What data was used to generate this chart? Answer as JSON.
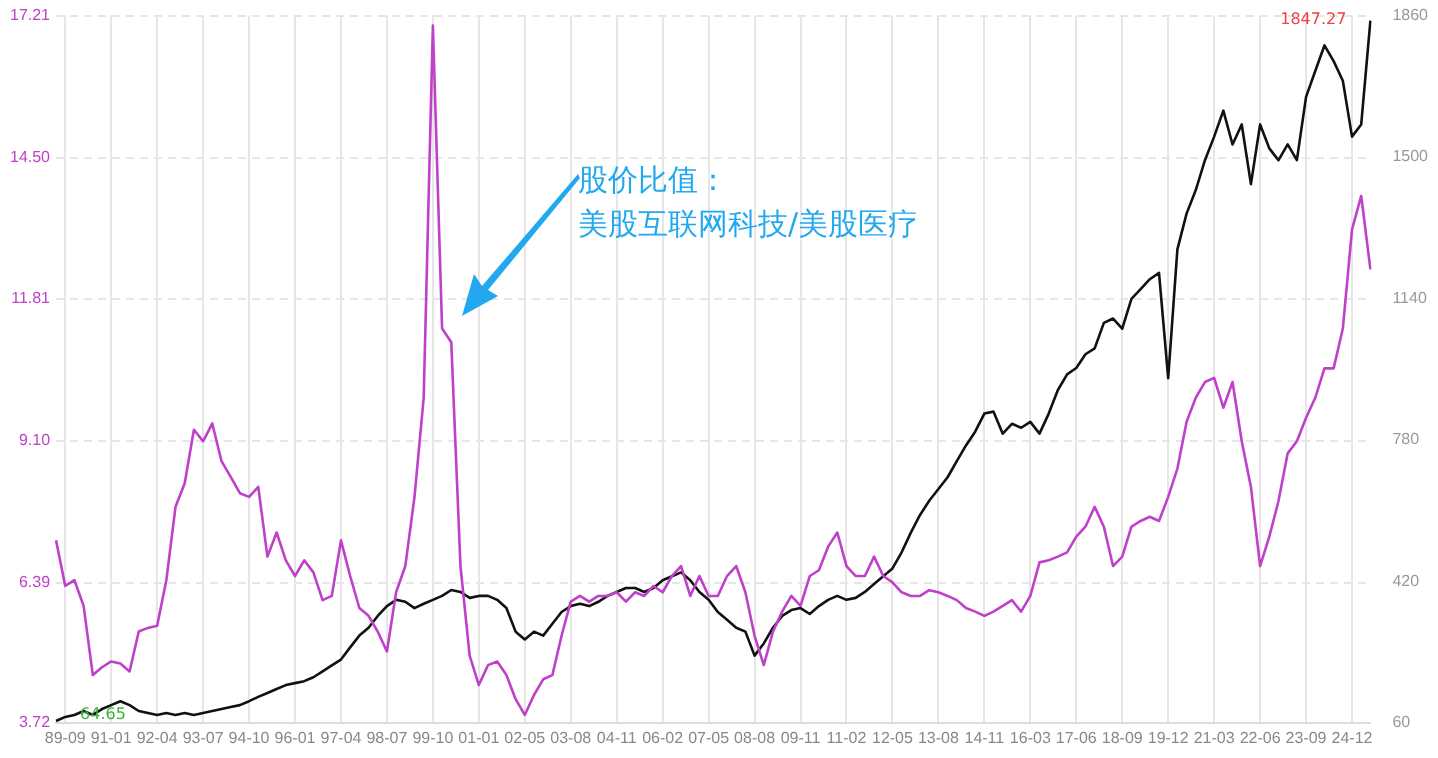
{
  "chart_data": {
    "type": "line",
    "categories": [
      null,
      "89-09",
      null,
      null,
      null,
      null,
      "91-01",
      null,
      null,
      null,
      null,
      "92-04",
      null,
      null,
      null,
      null,
      "93-07",
      null,
      null,
      null,
      null,
      "94-10",
      null,
      null,
      null,
      null,
      "96-01",
      null,
      null,
      null,
      null,
      "97-04",
      null,
      null,
      null,
      null,
      "98-07",
      null,
      null,
      null,
      null,
      "99-10",
      null,
      null,
      null,
      null,
      "01-01",
      null,
      null,
      null,
      null,
      "02-05",
      null,
      null,
      null,
      null,
      "03-08",
      null,
      null,
      null,
      null,
      "04-11",
      null,
      null,
      null,
      null,
      "06-02",
      null,
      null,
      null,
      null,
      "07-05",
      null,
      null,
      null,
      null,
      "08-08",
      null,
      null,
      null,
      null,
      "09-11",
      null,
      null,
      null,
      null,
      "11-02",
      null,
      null,
      null,
      null,
      "12-05",
      null,
      null,
      null,
      null,
      "13-08",
      null,
      null,
      null,
      null,
      "14-11",
      null,
      null,
      null,
      null,
      "16-03",
      null,
      null,
      null,
      null,
      "17-06",
      null,
      null,
      null,
      null,
      "18-09",
      null,
      null,
      null,
      null,
      "19-12",
      null,
      null,
      null,
      null,
      "21-03",
      null,
      null,
      null,
      null,
      "22-06",
      null,
      null,
      null,
      null,
      "23-09",
      null,
      null,
      null,
      null,
      "24-12",
      null,
      null
    ],
    "series": [
      {
        "color": "#bf40c9",
        "values": [
          7.2,
          6.33,
          6.44,
          5.95,
          4.63,
          4.78,
          4.89,
          4.85,
          4.7,
          5.46,
          5.53,
          5.57,
          6.44,
          7.84,
          8.29,
          9.31,
          9.09,
          9.43,
          8.71,
          8.41,
          8.1,
          8.03,
          8.22,
          6.89,
          7.35,
          6.82,
          6.52,
          6.82,
          6.59,
          6.06,
          6.14,
          7.2,
          6.52,
          5.91,
          5.76,
          5.46,
          5.08,
          6.21,
          6.71,
          8.03,
          9.92,
          17.02,
          11.24,
          10.98,
          6.71,
          5.0,
          4.44,
          4.82,
          4.89,
          4.63,
          4.17,
          3.87,
          4.25,
          4.55,
          4.63,
          5.38,
          6.03,
          6.14,
          6.03,
          6.14,
          6.14,
          6.21,
          6.03,
          6.21,
          6.14,
          6.33,
          6.21,
          6.52,
          6.71,
          6.14,
          6.52,
          6.14,
          6.14,
          6.52,
          6.71,
          6.21,
          5.38,
          4.82,
          5.46,
          5.84,
          6.14,
          5.95,
          6.52,
          6.63,
          7.08,
          7.35,
          6.71,
          6.52,
          6.52,
          6.89,
          6.52,
          6.4,
          6.21,
          6.14,
          6.14,
          6.25,
          6.21,
          6.14,
          6.06,
          5.91,
          5.84,
          5.76,
          5.84,
          5.95,
          6.06,
          5.84,
          6.14,
          6.78,
          6.82,
          6.89,
          6.97,
          7.27,
          7.46,
          7.84,
          7.46,
          6.71,
          6.89,
          7.46,
          7.57,
          7.65,
          7.57,
          8.03,
          8.57,
          9.46,
          9.92,
          10.22,
          10.3,
          9.73,
          10.22,
          9.09,
          8.22,
          6.71,
          7.27,
          7.95,
          8.86,
          9.09,
          9.54,
          9.92,
          10.48,
          10.48,
          11.24,
          13.13,
          13.77,
          12.37
        ]
      },
      {
        "color": "#111111",
        "axis": "y2",
        "values": [
          64.65,
          75,
          80,
          90,
          80,
          95,
          105,
          115,
          105,
          90,
          85,
          80,
          85,
          80,
          85,
          80,
          85,
          90,
          95,
          100,
          105,
          115,
          126,
          136,
          146,
          156,
          161,
          166,
          176,
          191,
          206,
          221,
          252,
          282,
          302,
          332,
          357,
          373,
          368,
          352,
          363,
          373,
          383,
          398,
          393,
          378,
          383,
          383,
          373,
          352,
          292,
          272,
          292,
          282,
          312,
          342,
          357,
          363,
          357,
          368,
          383,
          393,
          403,
          403,
          393,
          403,
          423,
          433,
          443,
          423,
          393,
          373,
          342,
          322,
          302,
          292,
          231,
          262,
          302,
          332,
          347,
          352,
          337,
          357,
          373,
          383,
          373,
          378,
          393,
          413,
          433,
          453,
          494,
          544,
          589,
          625,
          655,
          685,
          726,
          766,
          801,
          847,
          852,
          796,
          821,
          811,
          826,
          796,
          847,
          907,
          947,
          963,
          998,
          1013,
          1078,
          1089,
          1063,
          1139,
          1164,
          1189,
          1205,
          937,
          1265,
          1356,
          1416,
          1492,
          1552,
          1618,
          1532,
          1583,
          1431,
          1583,
          1522,
          1492,
          1532,
          1492,
          1653,
          1719,
          1784,
          1744,
          1694,
          1552,
          1583,
          1847.27
        ]
      }
    ],
    "ylim": [
      3.72,
      17.21
    ],
    "yticks": [
      3.72,
      6.39,
      {
        "value": 9.1,
        "label": "9.10"
      },
      11.81,
      {
        "value": 14.5,
        "label": "14.50"
      },
      17.21
    ],
    "y2lim": [
      60,
      1860
    ],
    "y2ticks": [
      60,
      420,
      780,
      1140,
      1500,
      1860
    ],
    "grid": true,
    "annotations": [
      "股价比值：",
      "美股互联网科技/美股医疗",
      "1847.27",
      "64.65"
    ]
  }
}
